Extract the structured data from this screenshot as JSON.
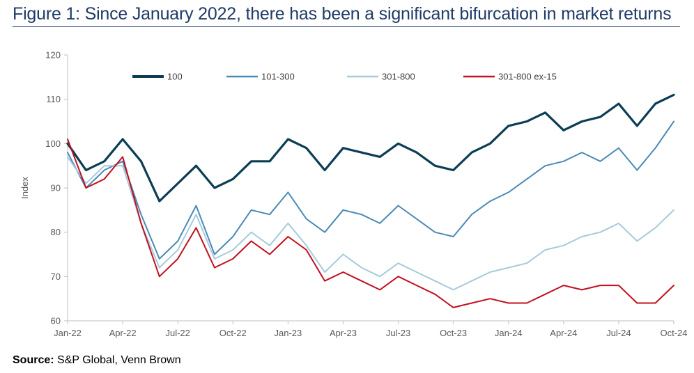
{
  "title": "Figure 1: Since January 2022, there has been a significant bifurcation in market returns",
  "source": {
    "label": "Source:",
    "text": "S&P Global, Venn Brown"
  },
  "colors": {
    "100": "#0b3d55",
    "101-300": "#4a8ab6",
    "301-800": "#a6cadc",
    "301-800 ex-15": "#c0111f",
    "title": "#1f3b67"
  },
  "chart_data": {
    "type": "line",
    "title": "",
    "xlabel": "",
    "ylabel": "Index",
    "ylim": [
      60,
      120
    ],
    "yticks": [
      60,
      70,
      80,
      90,
      100,
      110,
      120
    ],
    "x_range": [
      "2022-01",
      "2024-10"
    ],
    "xtick_labels": [
      "Jan-22",
      "Apr-22",
      "Jul-22",
      "Oct-22",
      "Jan-23",
      "Apr-23",
      "Jul-23",
      "Oct-23",
      "Jan-24",
      "Apr-24",
      "Jul-24",
      "Oct-24"
    ],
    "grid": false,
    "legend": "top",
    "x": [
      "2022-01",
      "2022-02",
      "2022-03",
      "2022-04",
      "2022-05",
      "2022-06",
      "2022-07",
      "2022-08",
      "2022-09",
      "2022-10",
      "2022-11",
      "2022-12",
      "2023-01",
      "2023-02",
      "2023-03",
      "2023-04",
      "2023-05",
      "2023-06",
      "2023-07",
      "2023-08",
      "2023-09",
      "2023-10",
      "2023-11",
      "2023-12",
      "2024-01",
      "2024-02",
      "2024-03",
      "2024-04",
      "2024-05",
      "2024-06",
      "2024-07",
      "2024-08",
      "2024-09",
      "2024-10"
    ],
    "series": [
      {
        "name": "100",
        "values": [
          100,
          94,
          96,
          101,
          96,
          87,
          91,
          95,
          90,
          92,
          96,
          96,
          101,
          99,
          94,
          99,
          98,
          97,
          100,
          98,
          95,
          94,
          98,
          100,
          104,
          105,
          107,
          103,
          105,
          106,
          109,
          104,
          109,
          111
        ]
      },
      {
        "name": "101-300",
        "values": [
          98,
          90,
          94,
          96,
          84,
          74,
          78,
          86,
          75,
          79,
          85,
          84,
          89,
          83,
          80,
          85,
          84,
          82,
          86,
          83,
          80,
          79,
          84,
          87,
          89,
          92,
          95,
          96,
          98,
          96,
          99,
          94,
          99,
          105
        ]
      },
      {
        "name": "301-800",
        "values": [
          97,
          91,
          95,
          95,
          82,
          72,
          76,
          84,
          74,
          76,
          80,
          77,
          82,
          77,
          71,
          75,
          72,
          70,
          73,
          71,
          69,
          67,
          69,
          71,
          72,
          73,
          76,
          77,
          79,
          80,
          82,
          78,
          81,
          85
        ]
      },
      {
        "name": "301-800 ex-15",
        "values": [
          101,
          90,
          92,
          97,
          82,
          70,
          74,
          81,
          72,
          74,
          78,
          75,
          79,
          76,
          69,
          71,
          69,
          67,
          70,
          68,
          66,
          63,
          64,
          65,
          64,
          64,
          66,
          68,
          67,
          68,
          68,
          64,
          64,
          68
        ]
      }
    ]
  }
}
